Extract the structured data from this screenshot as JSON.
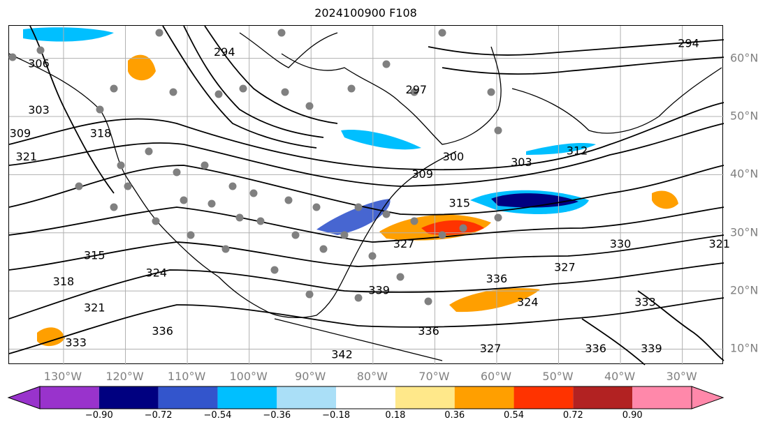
{
  "title": "2024100900 F108",
  "map": {
    "lon_labels": [
      {
        "text": "130°W",
        "lon": -130
      },
      {
        "text": "120°W",
        "lon": -120
      },
      {
        "text": "110°W",
        "lon": -110
      },
      {
        "text": "100°W",
        "lon": -100
      },
      {
        "text": "90°W",
        "lon": -90
      },
      {
        "text": "80°W",
        "lon": -80
      },
      {
        "text": "70°W",
        "lon": -70
      },
      {
        "text": "60°W",
        "lon": -60
      },
      {
        "text": "50°W",
        "lon": -50
      },
      {
        "text": "40°W",
        "lon": -40
      },
      {
        "text": "30°W",
        "lon": -30
      }
    ],
    "lat_labels": [
      {
        "text": "60°N",
        "lat": 60
      },
      {
        "text": "50°N",
        "lat": 50
      },
      {
        "text": "40°N",
        "lat": 40
      },
      {
        "text": "30°N",
        "lat": 30
      },
      {
        "text": "20°N",
        "lat": 20
      },
      {
        "text": "10°N",
        "lat": 10
      }
    ],
    "contour_labels": [
      {
        "text": "294",
        "lon": -104,
        "lat": 61
      },
      {
        "text": "294",
        "lon": -29,
        "lat": 62.5
      },
      {
        "text": "297",
        "lon": -73,
        "lat": 54.5
      },
      {
        "text": "300",
        "lon": -67,
        "lat": 43
      },
      {
        "text": "303",
        "lon": -56,
        "lat": 42
      },
      {
        "text": "303",
        "lon": -134,
        "lat": 51
      },
      {
        "text": "306",
        "lon": -134,
        "lat": 59
      },
      {
        "text": "309",
        "lon": -137,
        "lat": 47
      },
      {
        "text": "309",
        "lon": -72,
        "lat": 40
      },
      {
        "text": "312",
        "lon": -47,
        "lat": 44
      },
      {
        "text": "315",
        "lon": -125,
        "lat": 26
      },
      {
        "text": "315",
        "lon": -66,
        "lat": 35
      },
      {
        "text": "318",
        "lon": -124,
        "lat": 47
      },
      {
        "text": "318",
        "lon": -130,
        "lat": 21.5
      },
      {
        "text": "321",
        "lon": -136,
        "lat": 43
      },
      {
        "text": "321",
        "lon": -125,
        "lat": 17
      },
      {
        "text": "321",
        "lon": -24,
        "lat": 28
      },
      {
        "text": "324",
        "lon": -115,
        "lat": 23
      },
      {
        "text": "324",
        "lon": -55,
        "lat": 18
      },
      {
        "text": "327",
        "lon": -75,
        "lat": 28
      },
      {
        "text": "327",
        "lon": -49,
        "lat": 24
      },
      {
        "text": "327",
        "lon": -61,
        "lat": 10
      },
      {
        "text": "330",
        "lon": -40,
        "lat": 28
      },
      {
        "text": "333",
        "lon": -128,
        "lat": 11
      },
      {
        "text": "333",
        "lon": -36,
        "lat": 18
      },
      {
        "text": "336",
        "lon": -114,
        "lat": 13
      },
      {
        "text": "336",
        "lon": -71,
        "lat": 13
      },
      {
        "text": "336",
        "lon": -60,
        "lat": 22
      },
      {
        "text": "336",
        "lon": -44,
        "lat": 10
      },
      {
        "text": "339",
        "lon": -79,
        "lat": 20
      },
      {
        "text": "339",
        "lon": -35,
        "lat": 10
      },
      {
        "text": "342",
        "lon": -85,
        "lat": 9
      }
    ]
  },
  "colorbar": {
    "colors": [
      "#9933cc",
      "#9933cc",
      "#000080",
      "#3355cc",
      "#00bfff",
      "#aadff7",
      "#ffffff",
      "#ffe88a",
      "#ff9f00",
      "#ff3300",
      "#b22222",
      "#ff88aa",
      "#ff88aa"
    ],
    "ticks": [
      "−0.90",
      "−0.72",
      "−0.54",
      "−0.36",
      "−0.18",
      "0.18",
      "0.36",
      "0.54",
      "0.72",
      "0.90"
    ]
  }
}
